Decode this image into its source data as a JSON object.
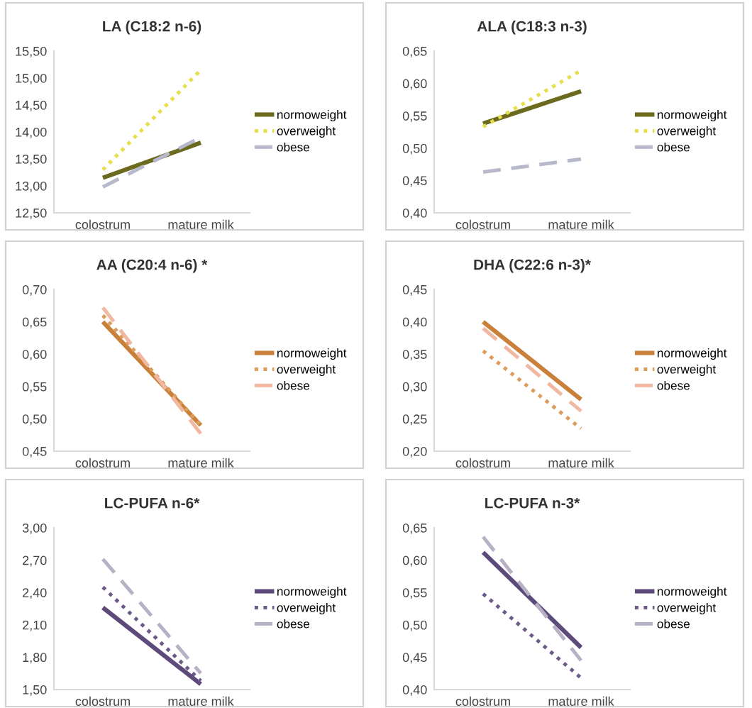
{
  "chart_data": [
    {
      "type": "line",
      "title": "LA (C18:2 n-6)",
      "categories": [
        "colostrum",
        "mature milk"
      ],
      "ylim": [
        12.5,
        15.5
      ],
      "yticks": [
        {
          "value": 12.5,
          "label": "12,50"
        },
        {
          "value": 13.0,
          "label": "13,00"
        },
        {
          "value": 13.5,
          "label": "13,50"
        },
        {
          "value": 14.0,
          "label": "14,00"
        },
        {
          "value": 14.5,
          "label": "14,50"
        },
        {
          "value": 15.0,
          "label": "15,00"
        },
        {
          "value": 15.5,
          "label": "15,50"
        }
      ],
      "legend": "right",
      "grid": false,
      "series": [
        {
          "name": "normoweight",
          "color": "#6b6a1e",
          "line_style": "solid",
          "values": [
            13.15,
            13.8
          ]
        },
        {
          "name": "overweight",
          "color": "#e6de4a",
          "line_style": "dotted",
          "values": [
            13.3,
            15.15
          ]
        },
        {
          "name": "obese",
          "color": "#b8b8cc",
          "line_style": "dashed",
          "values": [
            12.98,
            13.9
          ]
        }
      ]
    },
    {
      "type": "line",
      "title": "ALA (C18:3 n-3)",
      "categories": [
        "colostrum",
        "mature milk"
      ],
      "ylim": [
        0.4,
        0.65
      ],
      "yticks": [
        {
          "value": 0.4,
          "label": "0,40"
        },
        {
          "value": 0.45,
          "label": "0,45"
        },
        {
          "value": 0.5,
          "label": "0,50"
        },
        {
          "value": 0.55,
          "label": "0,55"
        },
        {
          "value": 0.6,
          "label": "0,60"
        },
        {
          "value": 0.65,
          "label": "0,65"
        }
      ],
      "legend": "right",
      "grid": false,
      "series": [
        {
          "name": "normoweight",
          "color": "#6b6a1e",
          "line_style": "solid",
          "values": [
            0.538,
            0.588
          ]
        },
        {
          "name": "overweight",
          "color": "#e6de4a",
          "line_style": "dotted",
          "values": [
            0.533,
            0.62
          ]
        },
        {
          "name": "obese",
          "color": "#b8b8cc",
          "line_style": "dashed",
          "values": [
            0.463,
            0.483
          ]
        }
      ]
    },
    {
      "type": "line",
      "title": "AA (C20:4 n-6) *",
      "categories": [
        "colostrum",
        "mature milk"
      ],
      "ylim": [
        0.45,
        0.7
      ],
      "yticks": [
        {
          "value": 0.45,
          "label": "0,45"
        },
        {
          "value": 0.5,
          "label": "0,50"
        },
        {
          "value": 0.55,
          "label": "0,55"
        },
        {
          "value": 0.6,
          "label": "0,60"
        },
        {
          "value": 0.65,
          "label": "0,65"
        },
        {
          "value": 0.7,
          "label": "0,70"
        }
      ],
      "legend": "right",
      "grid": false,
      "series": [
        {
          "name": "normoweight",
          "color": "#c8803a",
          "line_style": "solid",
          "values": [
            0.65,
            0.49
          ]
        },
        {
          "name": "overweight",
          "color": "#dc9c5c",
          "line_style": "dotted",
          "values": [
            0.66,
            0.49
          ]
        },
        {
          "name": "obese",
          "color": "#f0b8a0",
          "line_style": "dashed",
          "values": [
            0.672,
            0.477
          ]
        }
      ]
    },
    {
      "type": "line",
      "title": "DHA (C22:6 n-3)*",
      "categories": [
        "colostrum",
        "mature milk"
      ],
      "ylim": [
        0.2,
        0.45
      ],
      "yticks": [
        {
          "value": 0.2,
          "label": "0,20"
        },
        {
          "value": 0.25,
          "label": "0,25"
        },
        {
          "value": 0.3,
          "label": "0,30"
        },
        {
          "value": 0.35,
          "label": "0,35"
        },
        {
          "value": 0.4,
          "label": "0,40"
        },
        {
          "value": 0.45,
          "label": "0,45"
        }
      ],
      "legend": "right",
      "grid": false,
      "series": [
        {
          "name": "normoweight",
          "color": "#c8803a",
          "line_style": "solid",
          "values": [
            0.4,
            0.28
          ]
        },
        {
          "name": "overweight",
          "color": "#dc9c5c",
          "line_style": "dotted",
          "values": [
            0.355,
            0.235
          ]
        },
        {
          "name": "obese",
          "color": "#f0b8a0",
          "line_style": "dashed",
          "values": [
            0.39,
            0.262
          ]
        }
      ]
    },
    {
      "type": "line",
      "title": "LC-PUFA n-6*",
      "categories": [
        "colostrum",
        "mature milk"
      ],
      "ylim": [
        1.5,
        3.0
      ],
      "yticks": [
        {
          "value": 1.5,
          "label": "1,50"
        },
        {
          "value": 1.8,
          "label": "1,80"
        },
        {
          "value": 2.1,
          "label": "2,10"
        },
        {
          "value": 2.4,
          "label": "2,40"
        },
        {
          "value": 2.7,
          "label": "2,70"
        },
        {
          "value": 3.0,
          "label": "3,00"
        }
      ],
      "legend": "right",
      "grid": false,
      "series": [
        {
          "name": "normoweight",
          "color": "#5e4a7a",
          "line_style": "solid",
          "values": [
            2.26,
            1.55
          ]
        },
        {
          "name": "overweight",
          "color": "#6e5a88",
          "line_style": "dotted",
          "values": [
            2.45,
            1.58
          ]
        },
        {
          "name": "obese",
          "color": "#b8b0c4",
          "line_style": "dashed",
          "values": [
            2.71,
            1.65
          ]
        }
      ]
    },
    {
      "type": "line",
      "title": "LC-PUFA n-3*",
      "categories": [
        "colostrum",
        "mature milk"
      ],
      "ylim": [
        0.4,
        0.65
      ],
      "yticks": [
        {
          "value": 0.4,
          "label": "0,40"
        },
        {
          "value": 0.45,
          "label": "0,45"
        },
        {
          "value": 0.5,
          "label": "0,50"
        },
        {
          "value": 0.55,
          "label": "0,55"
        },
        {
          "value": 0.6,
          "label": "0,60"
        },
        {
          "value": 0.65,
          "label": "0,65"
        }
      ],
      "legend": "right",
      "grid": false,
      "series": [
        {
          "name": "normoweight",
          "color": "#5e4a7a",
          "line_style": "solid",
          "values": [
            0.612,
            0.465
          ]
        },
        {
          "name": "overweight",
          "color": "#6e5a88",
          "line_style": "dotted",
          "values": [
            0.548,
            0.418
          ]
        },
        {
          "name": "obese",
          "color": "#b8b0c4",
          "line_style": "dashed",
          "values": [
            0.636,
            0.445
          ]
        }
      ]
    }
  ]
}
